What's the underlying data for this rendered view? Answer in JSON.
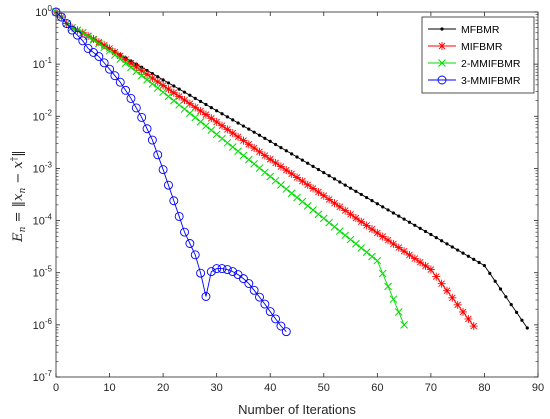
{
  "chart_data": {
    "type": "line",
    "title": "",
    "xlabel": "Number of Iterations",
    "ylabel": "E_n = ||x_n − x^†||",
    "xlim": [
      0,
      90
    ],
    "ylim_exponent": [
      -7,
      0
    ],
    "yscale": "log",
    "xticks": [
      0,
      10,
      20,
      30,
      40,
      50,
      60,
      70,
      80,
      90
    ],
    "yticks": [
      {
        "base": "10",
        "exp": "0"
      },
      {
        "base": "10",
        "exp": "-1"
      },
      {
        "base": "10",
        "exp": "-2"
      },
      {
        "base": "10",
        "exp": "-3"
      },
      {
        "base": "10",
        "exp": "-4"
      },
      {
        "base": "10",
        "exp": "-5"
      },
      {
        "base": "10",
        "exp": "-6"
      },
      {
        "base": "10",
        "exp": "-7"
      }
    ],
    "legend_position": "top-right",
    "grid": false,
    "series": [
      {
        "name": "MFBMR",
        "color": "#000000",
        "marker": "dot",
        "x": [
          0,
          1,
          2,
          3,
          5,
          10,
          20,
          30,
          40,
          50,
          60,
          70,
          80,
          88
        ],
        "y": [
          1.0,
          0.8,
          0.6,
          0.5,
          0.4,
          0.2,
          0.05,
          0.0128,
          0.0033,
          0.00083,
          0.00021,
          5.4e-05,
          1.37e-05,
          8.7e-07
        ]
      },
      {
        "name": "MIFBMR",
        "color": "#ff0000",
        "marker": "star",
        "x": [
          0,
          1,
          2,
          3,
          5,
          10,
          20,
          30,
          40,
          50,
          60,
          70,
          78
        ],
        "y": [
          1.0,
          0.8,
          0.6,
          0.5,
          0.4,
          0.2,
          0.039,
          0.0078,
          0.0015,
          0.0003,
          5.8e-05,
          1.15e-05,
          9.5e-07
        ]
      },
      {
        "name": "2-MMIFBMR",
        "color": "#00dd00",
        "marker": "x",
        "x": [
          0,
          1,
          2,
          3,
          5,
          10,
          20,
          30,
          40,
          50,
          60,
          65
        ],
        "y": [
          1.0,
          0.8,
          0.6,
          0.5,
          0.4,
          0.18,
          0.029,
          0.0045,
          0.0007,
          0.00011,
          1.7e-05,
          1e-06
        ]
      },
      {
        "name": "3-MMIFBMR",
        "color": "#0000ff",
        "marker": "circle",
        "x": [
          0,
          1,
          2,
          3,
          4,
          5,
          6,
          8,
          10,
          12,
          14,
          16,
          18,
          20,
          22,
          24,
          26,
          27,
          28,
          29,
          30,
          31,
          32,
          33,
          34,
          35,
          36,
          37,
          38,
          39,
          40,
          41,
          42,
          43
        ],
        "y": [
          1.0,
          0.8,
          0.6,
          0.45,
          0.36,
          0.28,
          0.2,
          0.14,
          0.08,
          0.045,
          0.022,
          0.0095,
          0.0035,
          0.00095,
          0.00024,
          6e-05,
          2.2e-05,
          9.8e-06,
          3.5e-06,
          1.05e-05,
          1.2e-05,
          1.2e-05,
          1.15e-05,
          1.05e-05,
          9.2e-06,
          7.7e-06,
          6.2e-06,
          4.6e-06,
          3.4e-06,
          2.5e-06,
          1.8e-06,
          1.3e-06,
          9.5e-07,
          7.4e-07
        ]
      }
    ]
  }
}
